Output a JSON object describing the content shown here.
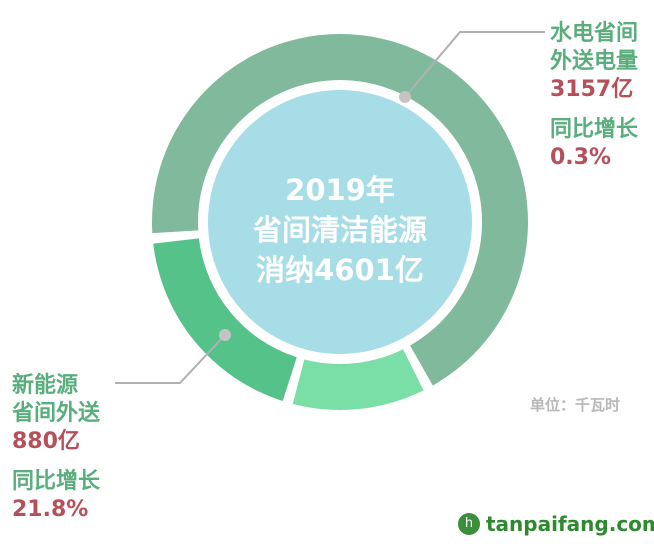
{
  "chart_data": {
    "type": "pie",
    "variant": "donut",
    "title": "2019年 省间清洁能源 消纳4601亿",
    "title_lines": [
      "2019年",
      "省间清洁能源",
      "消纳4601亿"
    ],
    "total": 4601,
    "unit_note": "单位：千瓦时",
    "slices": [
      {
        "name_lines": [
          "水电省间",
          "外送电量"
        ],
        "value": 3157,
        "value_label": "3157亿",
        "yoy_label": "同比增长",
        "yoy": "0.3%",
        "color": "#80b99c"
      },
      {
        "name": "",
        "value": 564,
        "color": "#79dfa6"
      },
      {
        "name_lines": [
          "新能源",
          "省间外送"
        ],
        "value": 880,
        "value_label": "880亿",
        "yoy_label": "同比增长",
        "yoy": "21.8%",
        "color": "#55c28a"
      }
    ],
    "center_color": "#a6dde7",
    "label_color": "#5aae7e",
    "value_color": "#b5505a"
  },
  "watermark": {
    "logo": "h",
    "text": "tanpaifang.com"
  }
}
